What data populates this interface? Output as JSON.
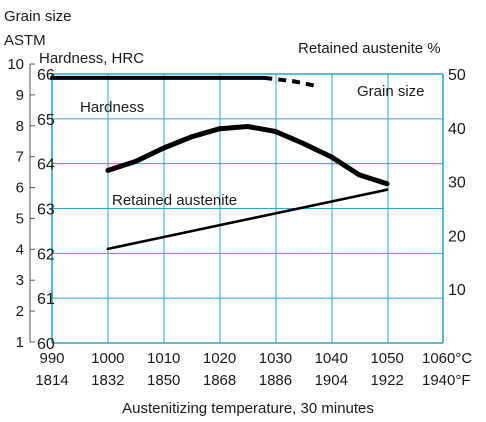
{
  "chart_data": {
    "type": "line",
    "x_celsius": [
      990,
      1000,
      1010,
      1020,
      1030,
      1040,
      1050
    ],
    "x_fahrenheit": [
      1814,
      1832,
      1850,
      1868,
      1886,
      1904,
      1922
    ],
    "x_unit_c": "1060°C",
    "x_unit_f": "1940°F",
    "xlabel": "Austenitizing temperature, 30 minutes",
    "xlim": [
      990,
      1060
    ],
    "grid": true,
    "axes": {
      "grain_size": {
        "title1": "Grain size",
        "title2": "ASTM",
        "range": [
          1,
          10
        ],
        "ticks": [
          "1",
          "2",
          "3",
          "4",
          "5",
          "6",
          "7",
          "8",
          "9",
          "10"
        ]
      },
      "hardness": {
        "title": "Hardness, HRC",
        "range": [
          60,
          66
        ],
        "ticks": [
          "60",
          "61",
          "62",
          "63",
          "64",
          "65",
          "66"
        ]
      },
      "retained_austenite": {
        "title": "Retained austenite %",
        "range": [
          0,
          50
        ],
        "ticks": [
          "10",
          "20",
          "30",
          "40",
          "50"
        ]
      }
    },
    "series": [
      {
        "name": "Hardness",
        "axis": "hardness",
        "style": "solid",
        "points": [
          [
            1000,
            63.85
          ],
          [
            1005,
            64.05
          ],
          [
            1010,
            64.35
          ],
          [
            1015,
            64.6
          ],
          [
            1020,
            64.78
          ],
          [
            1025,
            64.83
          ],
          [
            1030,
            64.72
          ],
          [
            1035,
            64.45
          ],
          [
            1040,
            64.15
          ],
          [
            1045,
            63.75
          ],
          [
            1050,
            63.55
          ]
        ]
      },
      {
        "name": "Retained austenite",
        "axis": "retained_austenite",
        "style": "solid",
        "points": [
          [
            1000,
            17.5
          ],
          [
            1050,
            28.5
          ]
        ]
      },
      {
        "name": "Grain size",
        "axis": "grain_size",
        "style": "solid",
        "points": [
          [
            990,
            9.55
          ],
          [
            1000,
            9.55
          ],
          [
            1010,
            9.55
          ],
          [
            1020,
            9.55
          ],
          [
            1028,
            9.55
          ]
        ]
      },
      {
        "name": "Grain size",
        "axis": "grain_size",
        "style": "dashed",
        "points": [
          [
            1028,
            9.55
          ],
          [
            1033,
            9.45
          ],
          [
            1037,
            9.3
          ]
        ]
      }
    ],
    "colors": {
      "grid": "#2aa6c7",
      "line": "#000000"
    }
  }
}
